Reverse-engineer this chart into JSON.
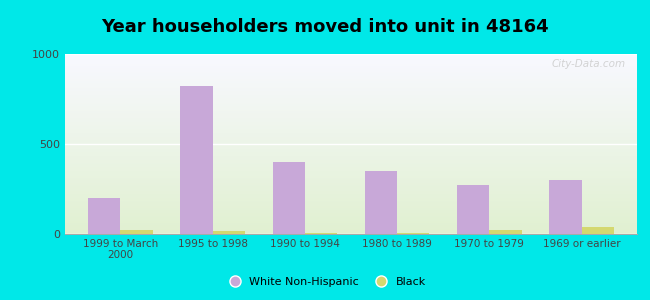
{
  "title": "Year householders moved into unit in 48164",
  "categories": [
    "1999 to March\n2000",
    "1995 to 1998",
    "1990 to 1994",
    "1980 to 1989",
    "1970 to 1979",
    "1969 or earlier"
  ],
  "white_values": [
    200,
    820,
    400,
    350,
    270,
    300
  ],
  "black_values": [
    20,
    15,
    5,
    5,
    25,
    40
  ],
  "white_color": "#c8a8d8",
  "black_color": "#d4d870",
  "ylim": [
    0,
    1000
  ],
  "yticks": [
    0,
    500,
    1000
  ],
  "bar_width": 0.35,
  "background_outer": "#00e8e8",
  "legend_white": "White Non-Hispanic",
  "legend_black": "Black",
  "title_fontsize": 13,
  "watermark": "City-Data.com"
}
